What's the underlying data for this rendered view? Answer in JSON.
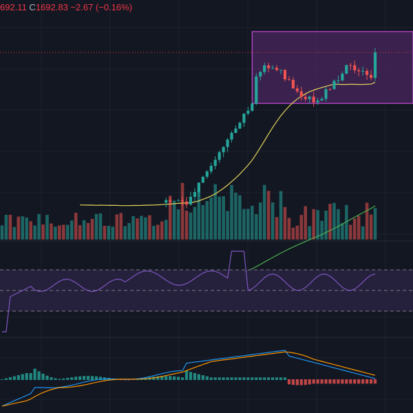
{
  "legend": {
    "open_tail": "692.11",
    "close_key": "C",
    "close_value": "1692.83",
    "change": "−2.67 (−0.16%)"
  },
  "colors": {
    "background": "#131722",
    "grid": "#1e222d",
    "up": "#26a69a",
    "down": "#ef5350",
    "ma_fast": "#e6d75a",
    "ma_slow": "#4caf50",
    "rsi": "#7e57c2",
    "rsi_band": "#2a2342",
    "macd": "#2196f3",
    "signal": "#ff9800",
    "rectangle_fill": "#5b2a72",
    "rectangle_border": "#c64bd6",
    "price_line": "#f23645"
  },
  "chart_data": {
    "type": "candlestick",
    "panes": [
      "price-volume",
      "rsi",
      "macd"
    ],
    "grid": true,
    "last_close": 1692.83,
    "change": -2.67,
    "change_pct": -0.16,
    "range_box": {
      "x_start_bar": 63,
      "x_end_bar": 100,
      "price_low": 1480,
      "price_high": 1780
    },
    "rsi_levels": [
      70,
      50,
      30
    ],
    "seed_candles": 92
  }
}
